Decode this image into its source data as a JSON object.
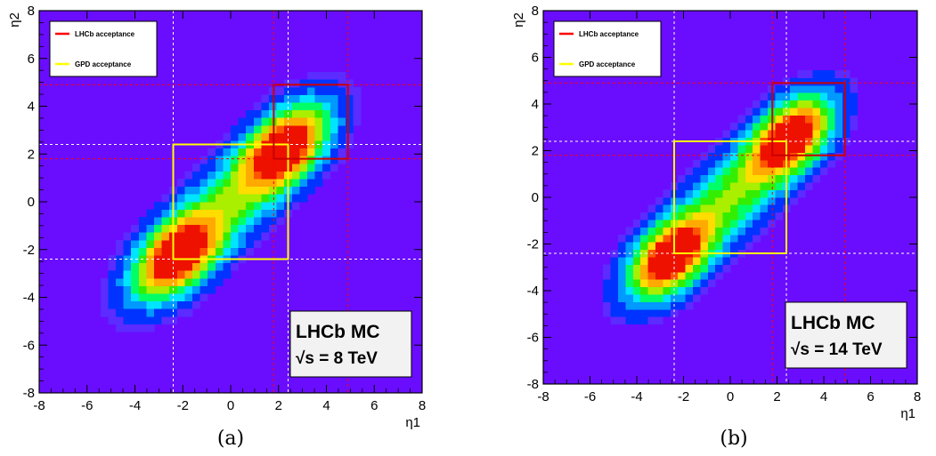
{
  "chart_data": [
    {
      "type": "heatmap",
      "subplot_label": "(a)",
      "xlabel": "η1",
      "ylabel": "η2",
      "xlim": [
        -8,
        8
      ],
      "ylim": [
        -8,
        8
      ],
      "xticks": [
        "-8",
        "-6",
        "-4",
        "-2",
        "0",
        "2",
        "4",
        "6",
        "8"
      ],
      "yticks": [
        "-8",
        "-6",
        "-4",
        "-2",
        "0",
        "2",
        "4",
        "6",
        "8"
      ],
      "legend": {
        "position": "top-left",
        "entries": [
          {
            "label": "LHCb acceptance",
            "color": "#ff0000"
          },
          {
            "label": "GPD acceptance",
            "color": "#ffff00"
          }
        ]
      },
      "annotation": {
        "line1": "LHCb MC",
        "line2_prefix": "√s",
        "line2": " = 8 TeV"
      },
      "peaks": [
        [
          -2.3,
          -2.3
        ],
        [
          2.3,
          2.3
        ]
      ],
      "lhcb_acceptance": {
        "min": 1.8,
        "max": 4.9
      },
      "gpd_acceptance": {
        "min": -2.4,
        "max": 2.4
      }
    },
    {
      "type": "heatmap",
      "subplot_label": "(b)",
      "xlabel": "η1",
      "ylabel": "η2",
      "xlim": [
        -8,
        8
      ],
      "ylim": [
        -8,
        8
      ],
      "xticks": [
        "-8",
        "-6",
        "-4",
        "-2",
        "0",
        "2",
        "4",
        "6",
        "8"
      ],
      "yticks": [
        "-8",
        "-6",
        "-4",
        "-2",
        "0",
        "2",
        "4",
        "6",
        "8"
      ],
      "legend": {
        "position": "top-left",
        "entries": [
          {
            "label": "LHCb acceptance",
            "color": "#ff0000"
          },
          {
            "label": "GPD acceptance",
            "color": "#ffff00"
          }
        ]
      },
      "annotation": {
        "line1": "LHCb MC",
        "line2_prefix": "√s",
        "line2": " = 14 TeV"
      },
      "peaks": [
        [
          -2.6,
          -2.6
        ],
        [
          2.6,
          2.6
        ]
      ],
      "lhcb_acceptance": {
        "min": 1.8,
        "max": 4.9
      },
      "gpd_acceptance": {
        "min": -2.4,
        "max": 2.4
      }
    }
  ],
  "colors": {
    "background": "#6a0dff",
    "palette": [
      "#5b2bff",
      "#0033ff",
      "#0099ff",
      "#00e5ff",
      "#00ff66",
      "#33ee00",
      "#aaee00",
      "#ffdd00",
      "#ffaa00",
      "#ff5500",
      "#ee1100"
    ]
  }
}
